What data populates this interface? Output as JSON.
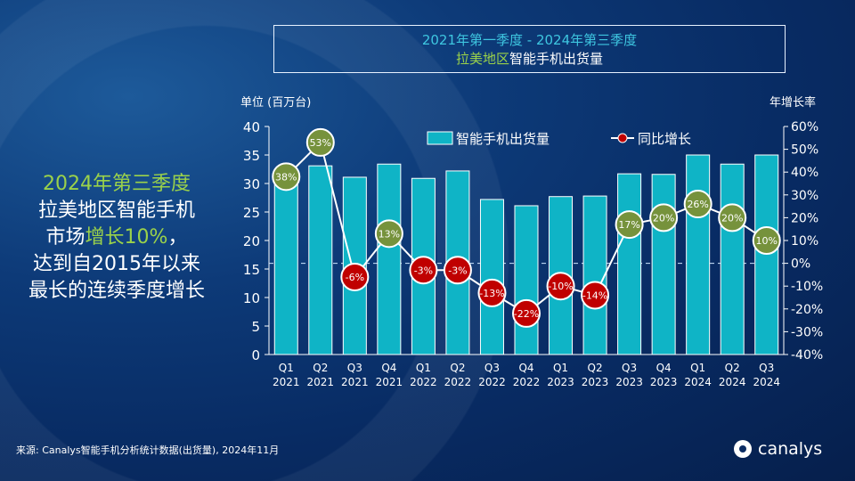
{
  "title": {
    "line1": "2021年第一季度 - 2024年第三季度",
    "line2_highlight": "拉美地区",
    "line2_rest": "智能手机出货量"
  },
  "headline": {
    "line1": "2024年第三季度",
    "line2": "拉美地区智能手机",
    "line3_pre": "市场",
    "line3_highlight": "增长10%",
    "line3_post": "，",
    "line4": "达到自2015年以来",
    "line5": "最长的连续季度增长"
  },
  "footer": "来源: Canalys智能手机分析统计数据(出货量), 2024年11月",
  "logo": "canalys",
  "colors": {
    "bar": "#0fb4c6",
    "positive": "#76923c",
    "negative": "#c00000",
    "line": "#ffffff"
  },
  "chart_data": {
    "type": "bar+line",
    "ylabel_left": "单位 (百万台)",
    "ylabel_right": "年增长率",
    "ylim_left": [
      0,
      40
    ],
    "yticks_left": [
      "0",
      "5",
      "10",
      "15",
      "20",
      "25",
      "30",
      "35",
      "40"
    ],
    "ylim_right": [
      -40,
      60
    ],
    "yticks_right": [
      "-40%",
      "-30%",
      "-20%",
      "-10%",
      "0%",
      "10%",
      "20%",
      "30%",
      "40%",
      "50%",
      "60%"
    ],
    "categories": [
      [
        "Q1",
        "2021"
      ],
      [
        "Q2",
        "2021"
      ],
      [
        "Q3",
        "2021"
      ],
      [
        "Q4",
        "2021"
      ],
      [
        "Q1",
        "2022"
      ],
      [
        "Q2",
        "2022"
      ],
      [
        "Q3",
        "2022"
      ],
      [
        "Q4",
        "2022"
      ],
      [
        "Q1",
        "2023"
      ],
      [
        "Q2",
        "2023"
      ],
      [
        "Q3",
        "2023"
      ],
      [
        "Q4",
        "2023"
      ],
      [
        "Q1",
        "2024"
      ],
      [
        "Q2",
        "2024"
      ],
      [
        "Q3",
        "2024"
      ]
    ],
    "series": [
      {
        "name": "智能手机出货量",
        "type": "bar",
        "axis": "left",
        "values": [
          31.3,
          33.1,
          31.1,
          33.4,
          30.9,
          32.2,
          27.2,
          26.1,
          27.7,
          27.8,
          31.7,
          31.6,
          35.0,
          33.4,
          35.0
        ]
      },
      {
        "name": "同比增长",
        "type": "line",
        "axis": "right",
        "values": [
          38,
          53,
          -6,
          13,
          -3,
          -3,
          -13,
          -22,
          -10,
          -14,
          17,
          20,
          26,
          20,
          10
        ],
        "labels": [
          "38%",
          "53%",
          "-6%",
          "13%",
          "-3%",
          "-3%",
          "-13%",
          "-22%",
          "-10%",
          "-14%",
          "17%",
          "20%",
          "26%",
          "20%",
          "10%"
        ]
      }
    ],
    "legend": "top"
  }
}
